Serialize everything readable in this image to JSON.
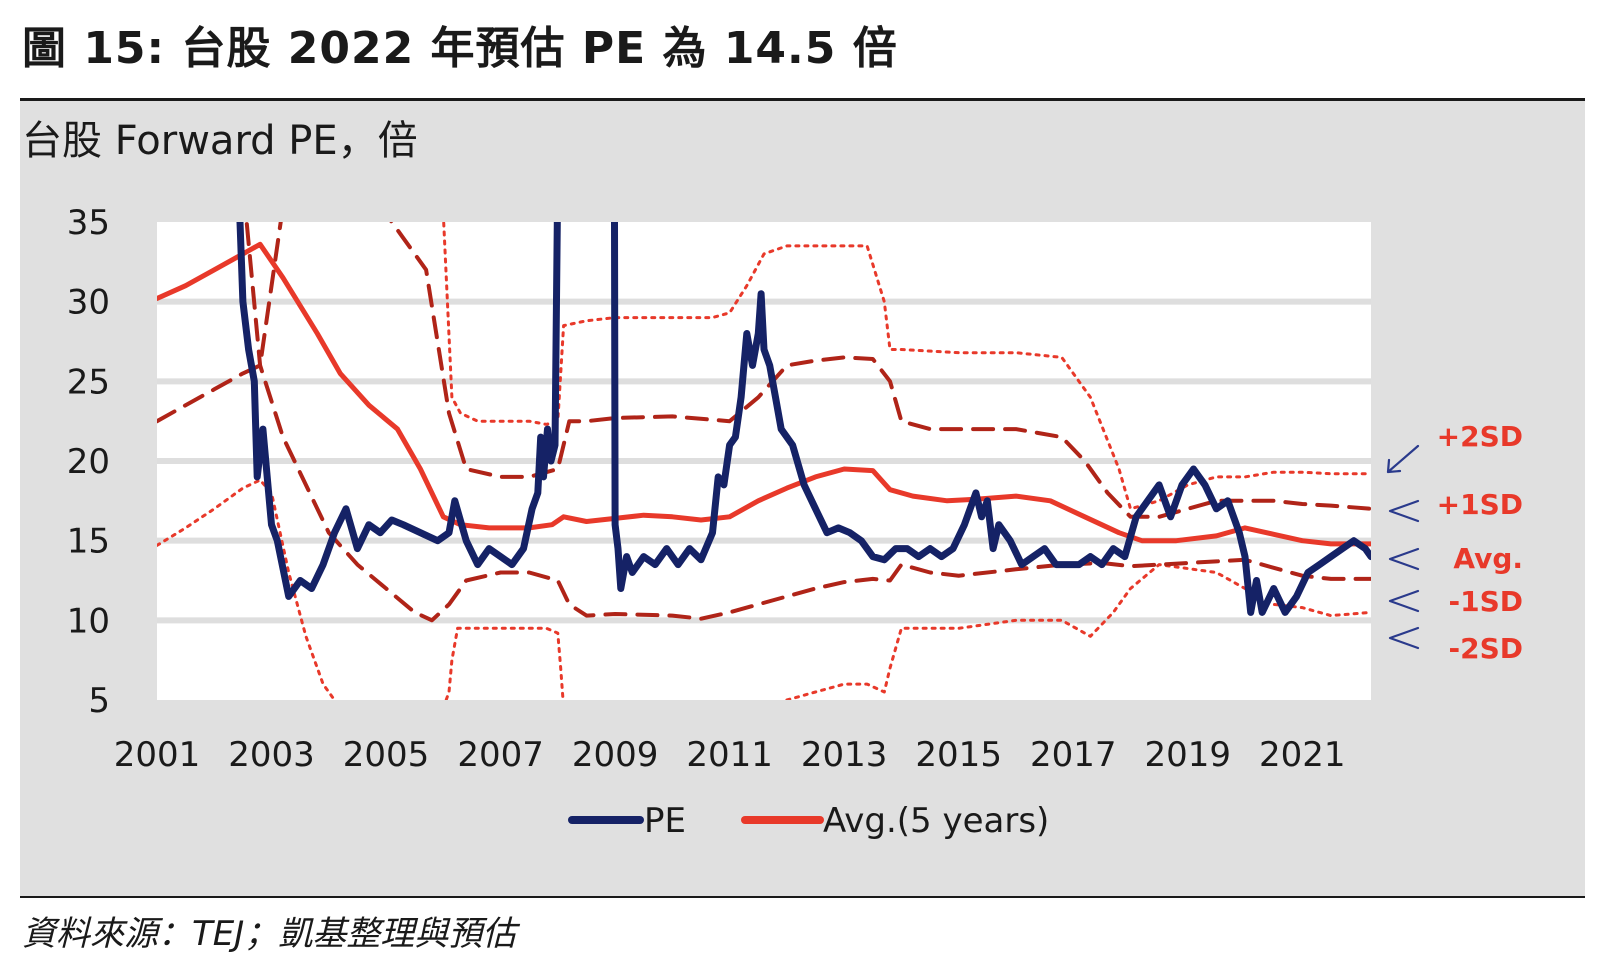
{
  "figure": {
    "title": "圖 15: 台股 2022 年預估 PE 為 14.5 倍",
    "source": "資料來源：TEJ；凱基整理與預估"
  },
  "colors": {
    "pe": "#152266",
    "avg": "#e8392a",
    "sd1": "#b02418",
    "sd2": "#e8392a",
    "arrow": "#2a3a8c",
    "grid": "#dedede",
    "plot_bg": "#ffffff"
  },
  "chart_data": {
    "type": "line",
    "title": "台股 Forward PE，倍",
    "xlabel": "",
    "ylabel": "",
    "xlim": [
      2001,
      2022.2
    ],
    "ylim": [
      5,
      35
    ],
    "x_ticks": [
      "2001",
      "2003",
      "2005",
      "2007",
      "2009",
      "2011",
      "2013",
      "2015",
      "2017",
      "2019",
      "2021"
    ],
    "y_ticks": [
      "35",
      "30",
      "25",
      "20",
      "15",
      "10",
      "5"
    ],
    "grid": true,
    "legend": [
      {
        "key": "pe",
        "label": "PE"
      },
      {
        "key": "avg",
        "label": "Avg.(5 years)"
      }
    ],
    "band_labels": [
      "+2SD",
      "+1SD",
      "Avg.",
      "-1SD",
      "-2SD"
    ],
    "series": [
      {
        "name": "PE",
        "style": "solid-thick",
        "x": [
          2002.45,
          2002.5,
          2002.6,
          2002.7,
          2002.75,
          2002.85,
          2003.0,
          2003.1,
          2003.3,
          2003.5,
          2003.7,
          2003.9,
          2004.1,
          2004.3,
          2004.5,
          2004.7,
          2004.9,
          2005.1,
          2005.3,
          2005.6,
          2005.9,
          2006.1,
          2006.2,
          2006.4,
          2006.6,
          2006.8,
          2007.0,
          2007.2,
          2007.4,
          2007.55,
          2007.65,
          2007.7,
          2007.75,
          2007.82,
          2007.88,
          2007.95,
          2007.99
        ],
        "y": [
          35,
          30,
          27,
          25,
          19,
          22,
          16,
          15,
          11.5,
          12.5,
          12,
          13.5,
          15.5,
          17,
          14.5,
          16,
          15.5,
          16.3,
          16,
          15.5,
          15,
          15.5,
          17.5,
          15,
          13.5,
          14.5,
          14,
          13.5,
          14.5,
          17,
          18,
          21.5,
          19,
          22,
          20,
          21,
          35
        ]
      },
      {
        "name": "PE",
        "style": "solid-thick",
        "x": [
          2008.99,
          2009.0,
          2009.05,
          2009.1,
          2009.2,
          2009.3,
          2009.5,
          2009.7,
          2009.9,
          2010.1,
          2010.3,
          2010.5,
          2010.7,
          2010.8,
          2010.9,
          2011.0,
          2011.1,
          2011.2,
          2011.3,
          2011.4,
          2011.5,
          2011.55,
          2011.6,
          2011.7,
          2011.8,
          2011.9,
          2012.1,
          2012.3,
          2012.5,
          2012.7,
          2012.9,
          2013.1,
          2013.3,
          2013.5,
          2013.7,
          2013.9,
          2014.1,
          2014.3,
          2014.5,
          2014.7,
          2014.9,
          2015.1,
          2015.3,
          2015.4,
          2015.5,
          2015.6,
          2015.7,
          2015.9,
          2016.1,
          2016.3,
          2016.5,
          2016.7,
          2016.9,
          2017.1,
          2017.3,
          2017.5,
          2017.7,
          2017.9,
          2018.1,
          2018.3,
          2018.5,
          2018.7,
          2018.9,
          2019.1,
          2019.3,
          2019.5,
          2019.7,
          2019.9,
          2020.0,
          2020.1,
          2020.2,
          2020.3,
          2020.5,
          2020.7,
          2020.9,
          2021.1,
          2021.3,
          2021.5,
          2021.7,
          2021.9,
          2022.1,
          2022.2
        ],
        "y": [
          35,
          16,
          14.5,
          12,
          14,
          13,
          14,
          13.5,
          14.5,
          13.5,
          14.5,
          13.8,
          15.5,
          19,
          18.5,
          21,
          21.5,
          24,
          28,
          26,
          28,
          30.5,
          27,
          26,
          24,
          22,
          21,
          18.5,
          17,
          15.5,
          15.8,
          15.5,
          15,
          14,
          13.8,
          14.5,
          14.5,
          14,
          14.5,
          14,
          14.5,
          16,
          18,
          16.5,
          17.5,
          14.5,
          16,
          15,
          13.5,
          14,
          14.5,
          13.5,
          13.5,
          13.5,
          14,
          13.5,
          14.5,
          14,
          16.5,
          17.5,
          18.5,
          16.5,
          18.5,
          19.5,
          18.5,
          17,
          17.5,
          15.5,
          14,
          10.5,
          12.5,
          10.5,
          12,
          10.5,
          11.5,
          13,
          13.5,
          14,
          14.5,
          15,
          14.5,
          14
        ]
      },
      {
        "name": "Avg.(5 years)",
        "style": "solid",
        "x": [
          2001,
          2001.5,
          2002.0,
          2002.5,
          2002.8,
          2003.2,
          2003.8,
          2004.2,
          2004.7,
          2005.2,
          2005.6,
          2006.0,
          2006.3,
          2006.8,
          2007.5,
          2007.9,
          2008.1,
          2008.5,
          2009.0,
          2009.5,
          2010.0,
          2010.5,
          2011.0,
          2011.5,
          2012.0,
          2012.5,
          2013.0,
          2013.5,
          2013.8,
          2014.2,
          2014.8,
          2015.3,
          2016.0,
          2016.6,
          2017.2,
          2017.8,
          2018.2,
          2018.8,
          2019.5,
          2020.0,
          2020.5,
          2021.0,
          2021.5,
          2022.2
        ],
        "y": [
          30.2,
          31,
          32,
          33,
          33.6,
          31.5,
          28,
          25.5,
          23.5,
          22,
          19.5,
          16.5,
          16,
          15.8,
          15.8,
          16,
          16.5,
          16.2,
          16.4,
          16.6,
          16.5,
          16.3,
          16.5,
          17.5,
          18.3,
          19,
          19.5,
          19.4,
          18.2,
          17.8,
          17.5,
          17.6,
          17.8,
          17.5,
          16.5,
          15.5,
          15,
          15,
          15.3,
          15.8,
          15.4,
          15,
          14.8,
          14.8
        ]
      },
      {
        "name": "+1SD",
        "style": "dashed",
        "x": [
          2001,
          2001.5,
          2002.0,
          2002.5,
          2002.8,
          2003.2,
          2003.6,
          2004.0,
          2004.8,
          2005.3,
          2005.7,
          2006.1,
          2006.4,
          2007.0,
          2007.5,
          2008.0,
          2008.2,
          2008.5,
          2009.0,
          2010.0,
          2011.0,
          2011.5,
          2012.0,
          2012.5,
          2013.0,
          2013.5,
          2013.8,
          2014.0,
          2014.5,
          2015.0,
          2016.0,
          2016.8,
          2017.2,
          2017.6,
          2018.0,
          2018.5,
          2019.5,
          2020.0,
          2020.5,
          2021.0,
          2021.5,
          2022.2
        ],
        "y": [
          22.5,
          23.5,
          24.5,
          25.5,
          26,
          36,
          37,
          37,
          36.5,
          34,
          32,
          23,
          19.5,
          19,
          19,
          19.5,
          22.5,
          22.5,
          22.7,
          22.8,
          22.5,
          24,
          26,
          26.3,
          26.5,
          26.4,
          25,
          22.5,
          22,
          22,
          22,
          21.5,
          20,
          18,
          16.5,
          16.5,
          17.5,
          17.5,
          17.5,
          17.3,
          17.2,
          17
        ]
      },
      {
        "name": "-1SD",
        "style": "dashed",
        "x": [
          2001,
          2001.5,
          2002.0,
          2002.5,
          2002.8,
          2003.2,
          2003.6,
          2004.0,
          2004.5,
          2005.0,
          2005.5,
          2005.8,
          2006.1,
          2006.4,
          2007.0,
          2007.5,
          2008.0,
          2008.2,
          2008.5,
          2009.0,
          2010.0,
          2010.5,
          2011.0,
          2011.5,
          2012.0,
          2012.5,
          2013.0,
          2013.5,
          2013.8,
          2014.0,
          2014.5,
          2015.0,
          2016.0,
          2016.8,
          2017.5,
          2018.0,
          2018.5,
          2019.5,
          2020.0,
          2020.5,
          2021.0,
          2021.5,
          2022.2
        ],
        "y": [
          37.5,
          37.5,
          37.5,
          37.5,
          26,
          21.5,
          18.5,
          15.5,
          13.5,
          12,
          10.5,
          10,
          11,
          12.5,
          13,
          13,
          12.5,
          11,
          10.3,
          10.4,
          10.3,
          10.1,
          10.5,
          11,
          11.5,
          12,
          12.4,
          12.6,
          12.5,
          13.5,
          13,
          12.8,
          13.2,
          13.5,
          13.6,
          13.4,
          13.5,
          13.7,
          13.8,
          13.3,
          12.8,
          12.6,
          12.6
        ]
      },
      {
        "name": "+2SD",
        "style": "dotted",
        "x": [
          2006.0,
          2006.15,
          2006.3,
          2006.6,
          2007.0,
          2007.5,
          2007.8,
          2008.0,
          2008.1,
          2008.5,
          2009.0,
          2010.0,
          2010.7,
          2011.0,
          2011.3,
          2011.6,
          2012.0,
          2012.5,
          2013.0,
          2013.4,
          2013.7,
          2013.8,
          2014.0,
          2015.0,
          2016.0,
          2016.8,
          2017.3,
          2017.8,
          2018.0,
          2018.5,
          2019.0,
          2019.5,
          2020.0,
          2020.5,
          2021.0,
          2021.5,
          2022.2
        ],
        "y": [
          35.5,
          24,
          23,
          22.5,
          22.5,
          22.5,
          22.3,
          22.5,
          28.5,
          28.8,
          29,
          29,
          29,
          29.3,
          31,
          33,
          33.5,
          33.5,
          33.5,
          33.5,
          30,
          27,
          27,
          26.8,
          26.8,
          26.5,
          24,
          19.5,
          17,
          17.5,
          18.5,
          19,
          19,
          19.3,
          19.3,
          19.2,
          19.2
        ]
      },
      {
        "name": "-2SD",
        "style": "dotted",
        "x": [
          2001,
          2001.5,
          2002.0,
          2002.5,
          2002.8,
          2003.0,
          2003.3,
          2003.6,
          2003.9,
          2004.2
        ],
        "y": [
          14.7,
          15.8,
          17,
          18.3,
          18.8,
          18,
          13,
          9,
          6,
          4.5
        ]
      },
      {
        "name": "-2SD",
        "style": "dotted",
        "x": [
          2006.0,
          2006.1,
          2006.15,
          2006.25,
          2007.0,
          2007.5,
          2007.8,
          2008.0,
          2008.05,
          2008.1
        ],
        "y": [
          4.5,
          5.5,
          7.5,
          9.5,
          9.5,
          9.5,
          9.5,
          9.2,
          7,
          4.5
        ]
      },
      {
        "name": "-2SD",
        "style": "dotted",
        "x": [
          2012.0,
          2012.5,
          2013.0,
          2013.4,
          2013.7,
          2013.8,
          2014.0,
          2015.0,
          2016.0,
          2016.8,
          2017.3,
          2017.7,
          2018.0,
          2018.5,
          2019.5,
          2020.0,
          2020.5,
          2021.0,
          2021.5,
          2022.2
        ],
        "y": [
          5,
          5.5,
          6,
          6,
          5.5,
          7,
          9.5,
          9.5,
          10,
          10,
          9,
          10.5,
          12,
          13.5,
          13,
          12,
          11,
          10.8,
          10.3,
          10.5
        ]
      }
    ]
  }
}
